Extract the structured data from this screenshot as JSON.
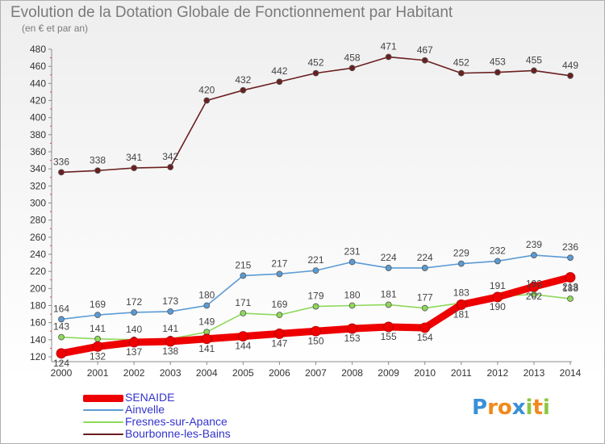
{
  "title": "Evolution de la Dotation Globale de Fonctionnement par Habitant",
  "subtitle": "(en € et par an)",
  "logo": {
    "text": "Proxiti",
    "letters": [
      {
        "ch": "P",
        "color": "#3a8fd9"
      },
      {
        "ch": "r",
        "color": "#f08a1c"
      },
      {
        "ch": "o",
        "color": "#f08a1c"
      },
      {
        "ch": "x",
        "color": "#3a8fd9"
      },
      {
        "ch": "i",
        "color": "#8cc63f"
      },
      {
        "ch": "t",
        "color": "#f08a1c"
      },
      {
        "ch": "i",
        "color": "#8cc63f"
      }
    ]
  },
  "chart_data": {
    "type": "line",
    "title": "Evolution de la Dotation Globale de Fonctionnement par Habitant",
    "subtitle": "(en € et par an)",
    "xlabel": "",
    "ylabel": "",
    "x": [
      "2000",
      "2001",
      "2002",
      "2003",
      "2004",
      "2005",
      "2006",
      "2007",
      "2008",
      "2009",
      "2010",
      "2011",
      "2012",
      "2013",
      "2014"
    ],
    "ylim": [
      120,
      480
    ],
    "yticks": [
      120,
      140,
      160,
      180,
      200,
      220,
      240,
      260,
      280,
      300,
      320,
      340,
      360,
      380,
      400,
      420,
      440,
      460,
      480
    ],
    "grid": false,
    "legend_position": "bottom-left",
    "series": [
      {
        "name": "SENAIDE",
        "color": "#ee0000",
        "values": [
          124,
          132,
          137,
          138,
          141,
          144,
          147,
          150,
          153,
          155,
          154,
          181,
          190,
          202,
          213
        ],
        "labels": [
          "124",
          "132",
          "137",
          "138",
          "141",
          "144",
          "147",
          "150",
          "153",
          "155",
          "154",
          "181",
          "190",
          "202",
          "213"
        ],
        "emphasis": true
      },
      {
        "name": "Ainvelle",
        "color": "#5b9bd5",
        "values": [
          164,
          169,
          172,
          173,
          180,
          215,
          217,
          221,
          231,
          224,
          224,
          229,
          232,
          239,
          236
        ],
        "labels": [
          "164",
          "169",
          "172",
          "173",
          "180",
          "215",
          "217",
          "221",
          "231",
          "224",
          "224",
          "229",
          "232",
          "239",
          "236"
        ]
      },
      {
        "name": "Fresnes-sur-Apance",
        "color": "#8ed85a",
        "values": [
          143,
          141,
          140,
          141,
          149,
          171,
          169,
          179,
          180,
          181,
          177,
          183,
          191,
          193,
          188
        ],
        "labels": [
          "143",
          "141",
          "140",
          "141",
          "149",
          "171",
          "169",
          "179",
          "180",
          "181",
          "177",
          "183",
          "191",
          "193",
          "188"
        ]
      },
      {
        "name": "Bourbonne-les-Bains",
        "color": "#6b1f1f",
        "values": [
          336,
          338,
          341,
          342,
          420,
          432,
          442,
          452,
          458,
          471,
          467,
          452,
          453,
          455,
          449
        ],
        "labels": [
          "336",
          "338",
          "341",
          "342",
          "420",
          "432",
          "442",
          "452",
          "458",
          "471",
          "467",
          "452",
          "453",
          "455",
          "449"
        ]
      }
    ]
  }
}
